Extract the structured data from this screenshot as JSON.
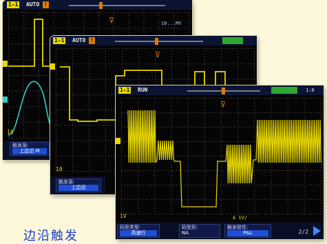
{
  "scopes": [
    {
      "id": "scope-1",
      "channel_badge": "1-1",
      "run_state": "AUTO",
      "stop_badge": "!",
      "scale_text": "10",
      "trigger_label": "触发菜单",
      "status_text": "10...MV",
      "menu": [
        {
          "title": "触发源:",
          "value": "上边沿 M"
        }
      ],
      "trace_colors": [
        "#e8d800",
        "#2ed0d0"
      ]
    },
    {
      "id": "scope-2",
      "channel_badge": "1-1",
      "run_state": "AUTO",
      "stop_badge": "!",
      "scale_text": "10",
      "ok_badge": "",
      "menu": [
        {
          "title": "触发源:",
          "value": "上边沿"
        }
      ],
      "trace_colors": [
        "#e8d800"
      ]
    },
    {
      "id": "scope-3",
      "channel_badge": "1-1",
      "run_state": "RUN",
      "ok_badge": "",
      "time_text": "1:0",
      "scale_text": "1V",
      "status_text": "A 1V/",
      "menu": [
        {
          "title": "码型类型:",
          "value": "高速行"
        },
        {
          "title": "码型形:",
          "value": "NA"
        },
        {
          "title": "触发极性:",
          "value": "P&L"
        }
      ],
      "page": "2/2",
      "trace_colors": [
        "#e8d800"
      ]
    }
  ],
  "caption": "边沿触发"
}
